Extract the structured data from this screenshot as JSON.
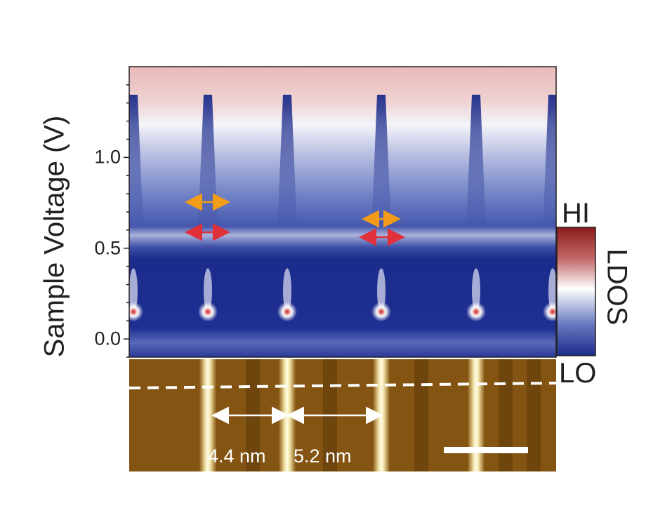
{
  "figure": {
    "y_axis_label": "Sample Voltage (V)",
    "y_ticks": [
      "1.0",
      "0.5",
      "0.0"
    ],
    "colorbar": {
      "title": "LDOS",
      "high_label": "HI",
      "low_label": "LO"
    },
    "distances": {
      "left": "4.4 nm",
      "right": "5.2 nm"
    },
    "colors": {
      "ldos_high": "#8b1a1a",
      "ldos_mid": "#ffffff",
      "ldos_low": "#1c2c8c",
      "arrow_orange": "#f39c1a",
      "arrow_red": "#e0303a",
      "topo_base": "#8a5a14"
    }
  },
  "chart_data": {
    "type": "heatmap",
    "ylabel": "Sample Voltage (V)",
    "ylim": [
      -0.1,
      1.5
    ],
    "yticks": [
      0.0,
      0.5,
      1.0
    ],
    "colorbar": {
      "label": "LDOS",
      "high": "HI",
      "low": "LO"
    },
    "features": {
      "bright_spot_voltage": 0.15,
      "white_band_voltage": 0.6,
      "orange_arrow_voltages": [
        0.75,
        0.66
      ],
      "red_arrow_voltages": [
        0.58,
        0.55
      ]
    },
    "distance_annotations": [
      "4.4 nm",
      "5.2 nm"
    ]
  }
}
